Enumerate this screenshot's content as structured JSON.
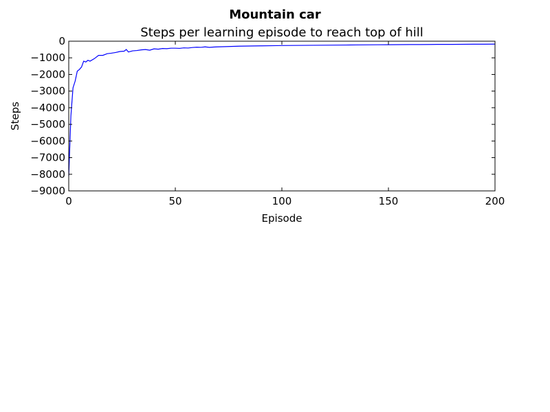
{
  "chart_data": {
    "type": "line",
    "suptitle": "Mountain car",
    "title": "Steps per learning episode to reach top of hill",
    "xlabel": "Episode",
    "ylabel": "Steps",
    "xlim": [
      0,
      200
    ],
    "ylim": [
      -9000,
      0
    ],
    "xticks": [
      0,
      50,
      100,
      150,
      200
    ],
    "yticks": [
      0,
      -1000,
      -2000,
      -3000,
      -4000,
      -5000,
      -6000,
      -7000,
      -8000,
      -9000
    ],
    "xtick_labels": [
      "0",
      "50",
      "100",
      "150",
      "200"
    ],
    "ytick_labels": [
      "0",
      "−1000",
      "−2000",
      "−3000",
      "−4000",
      "−5000",
      "−6000",
      "−7000",
      "−8000",
      "−9000"
    ],
    "grid": false,
    "series": [
      {
        "color": "#0000ff",
        "x": [
          0,
          1,
          2,
          3,
          4,
          5,
          6,
          7,
          8,
          9,
          10,
          12,
          14,
          16,
          18,
          20,
          22,
          24,
          26,
          27,
          28,
          30,
          32,
          34,
          36,
          38,
          40,
          42,
          44,
          46,
          48,
          50,
          52,
          54,
          56,
          58,
          60,
          62,
          64,
          66,
          68,
          70,
          75,
          80,
          85,
          90,
          95,
          100,
          105,
          110,
          115,
          120,
          125,
          130,
          135,
          140,
          145,
          150,
          155,
          160,
          165,
          170,
          175,
          180,
          185,
          190,
          195,
          200
        ],
        "y": [
          -8100,
          -4500,
          -2800,
          -2400,
          -1800,
          -1700,
          -1550,
          -1200,
          -1250,
          -1150,
          -1200,
          -1050,
          -850,
          -850,
          -750,
          -720,
          -680,
          -620,
          -600,
          -500,
          -650,
          -580,
          -560,
          -520,
          -500,
          -540,
          -460,
          -480,
          -440,
          -450,
          -420,
          -420,
          -430,
          -400,
          -410,
          -380,
          -360,
          -370,
          -340,
          -370,
          -350,
          -340,
          -320,
          -300,
          -290,
          -280,
          -270,
          -260,
          -255,
          -250,
          -245,
          -240,
          -235,
          -230,
          -225,
          -220,
          -215,
          -210,
          -205,
          -200,
          -200,
          -195,
          -190,
          -190,
          -185,
          -180,
          -180,
          -175
        ]
      }
    ]
  }
}
